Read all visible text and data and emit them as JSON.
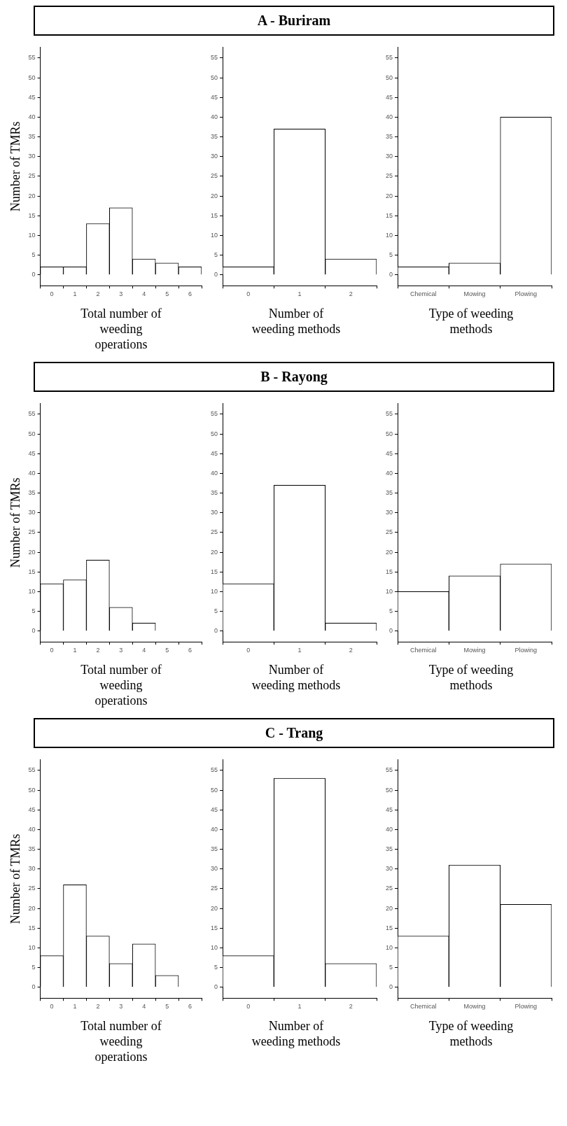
{
  "chart_data": [
    {
      "type": "bar",
      "ylabel": "Number of TMRs",
      "xlabel": "Total number of weeding operations",
      "categories": [
        "0",
        "1",
        "2",
        "3",
        "4",
        "5",
        "6"
      ],
      "values": [
        2,
        2,
        13,
        17,
        4,
        3,
        2
      ],
      "color": "#ffffff",
      "ylim": [
        -2.75,
        57.75
      ],
      "yticks": [
        0,
        5,
        10,
        15,
        20,
        25,
        30,
        35,
        40,
        45,
        50,
        55
      ]
    },
    {
      "type": "bar",
      "title": "A - Buriram",
      "xlabel": "Number of weeding methods",
      "categories": [
        "0",
        "1",
        "2"
      ],
      "values": [
        2,
        37,
        4
      ],
      "color": "#ffffff",
      "ylim": [
        -2.75,
        57.75
      ],
      "yticks": [
        0,
        5,
        10,
        15,
        20,
        25,
        30,
        35,
        40,
        45,
        50,
        55
      ]
    },
    {
      "type": "bar",
      "xlabel": "Type of weeding methods",
      "categories": [
        "Chemical",
        "Mowing",
        "Plowing"
      ],
      "values": [
        2,
        3,
        40
      ],
      "color": "#ffffff",
      "ylim": [
        -2.75,
        57.75
      ],
      "yticks": [
        0,
        5,
        10,
        15,
        20,
        25,
        30,
        35,
        40,
        45,
        50,
        55
      ]
    },
    {
      "type": "bar",
      "ylabel": "Number of TMRs",
      "xlabel": "Total number of weeding operations",
      "categories": [
        "0",
        "1",
        "2",
        "3",
        "4",
        "5",
        "6"
      ],
      "values": [
        12,
        13,
        18,
        6,
        2,
        0,
        0
      ],
      "color": "#ffffff",
      "ylim": [
        -2.75,
        57.75
      ],
      "yticks": [
        0,
        5,
        10,
        15,
        20,
        25,
        30,
        35,
        40,
        45,
        50,
        55
      ]
    },
    {
      "type": "bar",
      "title": "B - Rayong",
      "xlabel": "Number of weeding methods",
      "categories": [
        "0",
        "1",
        "2"
      ],
      "values": [
        12,
        37,
        2
      ],
      "color": "#ffffff",
      "ylim": [
        -2.75,
        57.75
      ],
      "yticks": [
        0,
        5,
        10,
        15,
        20,
        25,
        30,
        35,
        40,
        45,
        50,
        55
      ]
    },
    {
      "type": "bar",
      "xlabel": "Type of weeding methods",
      "categories": [
        "Chemical",
        "Mowing",
        "Plowing"
      ],
      "values": [
        10,
        14,
        17
      ],
      "color": "#ffffff",
      "ylim": [
        -2.75,
        57.75
      ],
      "yticks": [
        0,
        5,
        10,
        15,
        20,
        25,
        30,
        35,
        40,
        45,
        50,
        55
      ]
    },
    {
      "type": "bar",
      "ylabel": "Number of TMRs",
      "xlabel": "Total number of weeding operations",
      "categories": [
        "0",
        "1",
        "2",
        "3",
        "4",
        "5",
        "6"
      ],
      "values": [
        8,
        26,
        13,
        6,
        11,
        3,
        0
      ],
      "color": "#ffffff",
      "ylim": [
        -2.75,
        57.75
      ],
      "yticks": [
        0,
        5,
        10,
        15,
        20,
        25,
        30,
        35,
        40,
        45,
        50,
        55
      ]
    },
    {
      "type": "bar",
      "title": "C - Trang",
      "xlabel": "Number of weeding methods",
      "categories": [
        "0",
        "1",
        "2"
      ],
      "values": [
        8,
        53,
        6
      ],
      "color": "#ffffff",
      "ylim": [
        -2.75,
        57.75
      ],
      "yticks": [
        0,
        5,
        10,
        15,
        20,
        25,
        30,
        35,
        40,
        45,
        50,
        55
      ]
    },
    {
      "type": "bar",
      "xlabel": "Type of weeding methods",
      "categories": [
        "Chemical",
        "Mowing",
        "Plowing"
      ],
      "values": [
        13,
        31,
        21
      ],
      "color": "#ffffff",
      "ylim": [
        -2.75,
        57.75
      ],
      "yticks": [
        0,
        5,
        10,
        15,
        20,
        25,
        30,
        35,
        40,
        45,
        50,
        55
      ]
    }
  ]
}
